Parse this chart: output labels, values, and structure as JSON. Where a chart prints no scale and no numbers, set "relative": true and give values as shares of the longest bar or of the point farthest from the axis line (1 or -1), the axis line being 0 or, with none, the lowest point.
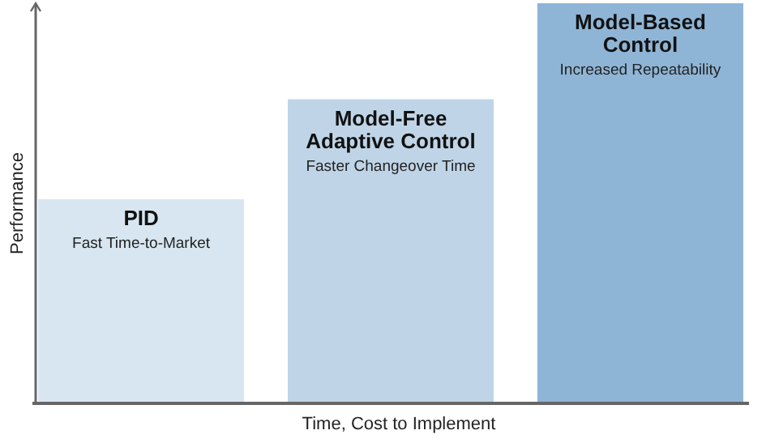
{
  "chart_data": {
    "type": "bar",
    "relative": true,
    "xlabel": "Time, Cost to Implement",
    "ylabel": "Performance",
    "categories": [
      "PID",
      "Model-Free Adaptive Control",
      "Model-Based Control"
    ],
    "values": [
      0.51,
      0.76,
      1
    ],
    "colors": [
      "#d7e6f0",
      "#bfd5e7",
      "#8fb5d6"
    ],
    "annotations": [
      "Fast Time-to-Market",
      "Faster Changeover Time",
      "Increased Repeatability"
    ]
  }
}
